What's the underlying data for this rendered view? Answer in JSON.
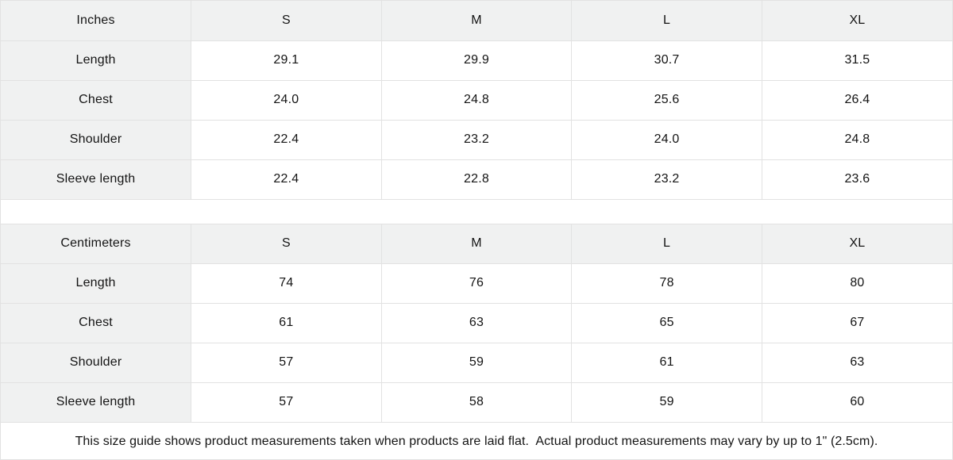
{
  "theme": {
    "header_fill": "#f0f1f1",
    "label_fill": "#f0f1f1",
    "border_color": "#e2e2e2",
    "text_color": "#141414",
    "background": "#ffffff"
  },
  "tables": [
    {
      "unit_label": "Inches",
      "columns": [
        "S",
        "M",
        "L",
        "XL"
      ],
      "rows": [
        {
          "label": "Length",
          "values": [
            "29.1",
            "29.9",
            "30.7",
            "31.5"
          ]
        },
        {
          "label": "Chest",
          "values": [
            "24.0",
            "24.8",
            "25.6",
            "26.4"
          ]
        },
        {
          "label": "Shoulder",
          "values": [
            "22.4",
            "23.2",
            "24.0",
            "24.8"
          ]
        },
        {
          "label": "Sleeve length",
          "values": [
            "22.4",
            "22.8",
            "23.2",
            "23.6"
          ]
        }
      ]
    },
    {
      "unit_label": "Centimeters",
      "columns": [
        "S",
        "M",
        "L",
        "XL"
      ],
      "rows": [
        {
          "label": "Length",
          "values": [
            "74",
            "76",
            "78",
            "80"
          ]
        },
        {
          "label": "Chest",
          "values": [
            "61",
            "63",
            "65",
            "67"
          ]
        },
        {
          "label": "Shoulder",
          "values": [
            "57",
            "59",
            "61",
            "63"
          ]
        },
        {
          "label": "Sleeve length",
          "values": [
            "57",
            "58",
            "59",
            "60"
          ]
        }
      ]
    }
  ],
  "footer": {
    "note": "This size guide shows product measurements taken when products are laid flat.  Actual product measurements may vary by up to 1\" (2.5cm)."
  }
}
